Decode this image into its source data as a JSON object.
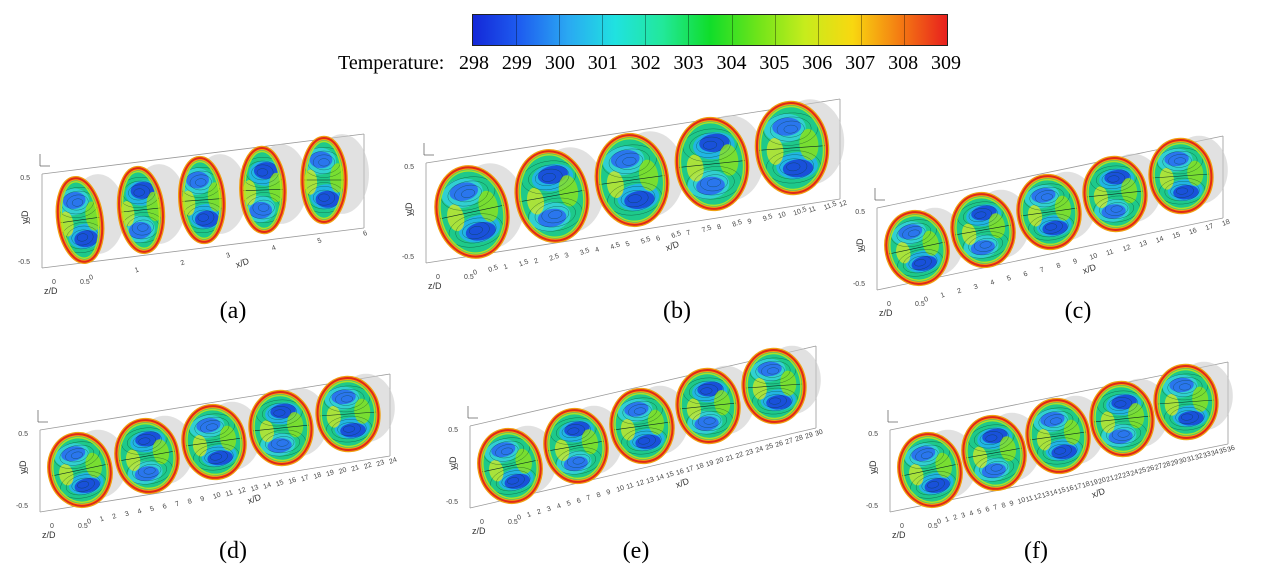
{
  "colorbar": {
    "title": "Temperature:",
    "ticks": [
      "298",
      "299",
      "300",
      "301",
      "302",
      "303",
      "304",
      "305",
      "306",
      "307",
      "308",
      "309"
    ],
    "colors": [
      "#1428d8",
      "#1e5ef0",
      "#2aa8f2",
      "#20e2e0",
      "#22e89a",
      "#10dd2a",
      "#6ee41a",
      "#c6ec1c",
      "#f8d810",
      "#f47c12",
      "#e8201e"
    ]
  },
  "axes": {
    "x": "x/D",
    "y": "y/D",
    "z": "z/D",
    "y_ticks": [
      "0.5",
      "0",
      "-0.5"
    ],
    "z_ticks": [
      "0",
      "0.5"
    ]
  },
  "panels": [
    {
      "label": "(a)",
      "x_ticks": [
        "0",
        "1",
        "2",
        "3",
        "4",
        "5",
        "6"
      ]
    },
    {
      "label": "(b)",
      "x_ticks": [
        "0",
        "0.5",
        "1",
        "1.5",
        "2",
        "2.5",
        "3",
        "3.5",
        "4",
        "4.5",
        "5",
        "5.5",
        "6",
        "6.5",
        "7",
        "7.5",
        "8",
        "8.5",
        "9",
        "9.5",
        "10",
        "10.5",
        "11",
        "11.5",
        "12"
      ]
    },
    {
      "label": "(c)",
      "x_ticks": [
        "0",
        "1",
        "2",
        "3",
        "4",
        "5",
        "6",
        "7",
        "8",
        "9",
        "10",
        "11",
        "12",
        "13",
        "14",
        "15",
        "16",
        "17",
        "18"
      ]
    },
    {
      "label": "(d)",
      "x_ticks": [
        "0",
        "1",
        "2",
        "3",
        "4",
        "5",
        "6",
        "7",
        "8",
        "9",
        "10",
        "11",
        "12",
        "13",
        "14",
        "15",
        "16",
        "17",
        "18",
        "19",
        "20",
        "21",
        "22",
        "23",
        "24"
      ]
    },
    {
      "label": "(e)",
      "x_ticks": [
        "0",
        "1",
        "2",
        "3",
        "4",
        "5",
        "6",
        "7",
        "8",
        "9",
        "10",
        "11",
        "12",
        "13",
        "14",
        "15",
        "16",
        "17",
        "18",
        "19",
        "20",
        "21",
        "22",
        "23",
        "24",
        "25",
        "26",
        "27",
        "28",
        "29",
        "30"
      ]
    },
    {
      "label": "(f)",
      "x_ticks": [
        "0",
        "1",
        "2",
        "3",
        "4",
        "5",
        "6",
        "7",
        "8",
        "9",
        "10",
        "11",
        "12",
        "13",
        "14",
        "15",
        "16",
        "17",
        "18",
        "19",
        "20",
        "21",
        "22",
        "23",
        "24",
        "25",
        "26",
        "27",
        "28",
        "29",
        "30",
        "31",
        "32",
        "33",
        "34",
        "35",
        "36"
      ]
    }
  ]
}
